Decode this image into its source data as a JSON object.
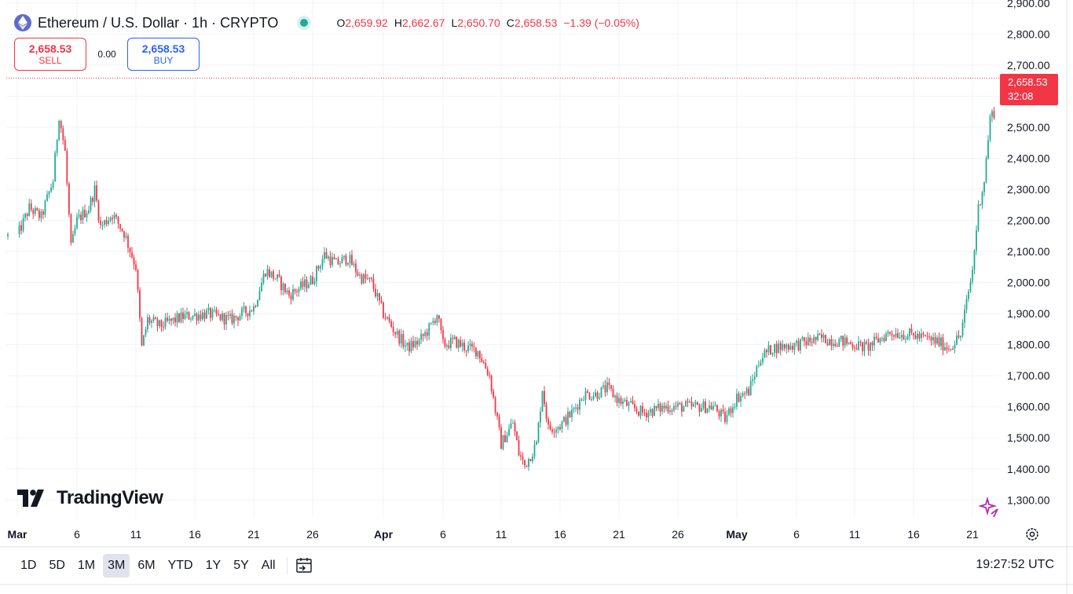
{
  "header": {
    "symbol_title": "Ethereum / U.S. Dollar · 1h · CRYPTO",
    "open_label": "O",
    "open_value": "2,659.92",
    "high_label": "H",
    "high_value": "2,662.67",
    "low_label": "L",
    "low_value": "2,650.70",
    "close_label": "C",
    "close_value": "2,658.53",
    "change": "−1.39 (−0.05%)",
    "icons": [
      "ethereum-logo-icon",
      "market-open-dot-icon"
    ]
  },
  "trade": {
    "sell_price": "2,658.53",
    "sell_label": "SELL",
    "spread": "0.00",
    "buy_price": "2,658.53",
    "buy_label": "BUY"
  },
  "price_tag": {
    "price": "2,658.53",
    "countdown": "32:08"
  },
  "brand": {
    "logo_text": "TradingView"
  },
  "toolbar": {
    "timeframes": [
      "1D",
      "5D",
      "1M",
      "3M",
      "6M",
      "YTD",
      "1Y",
      "5Y",
      "All"
    ],
    "active_timeframe": "3M",
    "clock": "19:27:52 UTC",
    "icons": [
      "date-range-icon",
      "settings-icon",
      "ai-sparkle-icon"
    ]
  },
  "colors": {
    "up": "#22ab94",
    "down": "#f23645",
    "accent": "#2962ff",
    "price_line": "#f23645"
  },
  "chart_data": {
    "type": "candlestick",
    "title": "Ethereum / U.S. Dollar · 1h · CRYPTO",
    "y_ticks": [
      "2,900.00",
      "2,800.00",
      "2,700.00",
      "2,600.00",
      "2,500.00",
      "2,400.00",
      "2,300.00",
      "2,200.00",
      "2,100.00",
      "2,000.00",
      "1,900.00",
      "1,800.00",
      "1,700.00",
      "1,600.00",
      "1,500.00",
      "1,400.00",
      "1,300.00"
    ],
    "ylim": [
      1240,
      2910
    ],
    "x_ticks": [
      "Mar",
      "6",
      "11",
      "16",
      "21",
      "26",
      "Apr",
      "6",
      "11",
      "16",
      "21",
      "26",
      "May",
      "6",
      "11",
      "16",
      "21"
    ],
    "xlim": [
      "2024-03-01",
      "2024-05-24"
    ],
    "last_price": 2658.53,
    "price_path": [
      [
        "2024-03-01",
        2150
      ],
      [
        "2024-03-02",
        2240
      ],
      [
        "2024-03-03",
        2210
      ],
      [
        "2024-03-04",
        2330
      ],
      [
        "2024-03-04T12",
        2540
      ],
      [
        "2024-03-05",
        2420
      ],
      [
        "2024-03-05T12",
        2110
      ],
      [
        "2024-03-06",
        2200
      ],
      [
        "2024-03-07",
        2240
      ],
      [
        "2024-03-07T12",
        2300
      ],
      [
        "2024-03-08",
        2180
      ],
      [
        "2024-03-09",
        2220
      ],
      [
        "2024-03-10",
        2160
      ],
      [
        "2024-03-11",
        2050
      ],
      [
        "2024-03-11T12",
        1790
      ],
      [
        "2024-03-12",
        1880
      ],
      [
        "2024-03-13",
        1860
      ],
      [
        "2024-03-15",
        1890
      ],
      [
        "2024-03-17",
        1900
      ],
      [
        "2024-03-19",
        1880
      ],
      [
        "2024-03-21",
        1920
      ],
      [
        "2024-03-22",
        2040
      ],
      [
        "2024-03-23",
        2010
      ],
      [
        "2024-03-24",
        1960
      ],
      [
        "2024-03-26",
        2010
      ],
      [
        "2024-03-27",
        2090
      ],
      [
        "2024-03-28",
        2060
      ],
      [
        "2024-03-29",
        2080
      ],
      [
        "2024-03-30",
        2020
      ],
      [
        "2024-03-31",
        2000
      ],
      [
        "2024-04-01",
        1900
      ],
      [
        "2024-04-02",
        1840
      ],
      [
        "2024-04-03",
        1790
      ],
      [
        "2024-04-04",
        1810
      ],
      [
        "2024-04-05",
        1860
      ],
      [
        "2024-04-05T12",
        1900
      ],
      [
        "2024-04-06",
        1800
      ],
      [
        "2024-04-07",
        1810
      ],
      [
        "2024-04-08",
        1790
      ],
      [
        "2024-04-09",
        1780
      ],
      [
        "2024-04-10",
        1700
      ],
      [
        "2024-04-11",
        1480
      ],
      [
        "2024-04-12",
        1550
      ],
      [
        "2024-04-12T12",
        1450
      ],
      [
        "2024-04-13",
        1410
      ],
      [
        "2024-04-14",
        1480
      ],
      [
        "2024-04-14T12",
        1660
      ],
      [
        "2024-04-15",
        1530
      ],
      [
        "2024-04-16",
        1540
      ],
      [
        "2024-04-17",
        1580
      ],
      [
        "2024-04-18",
        1640
      ],
      [
        "2024-04-19",
        1640
      ],
      [
        "2024-04-20",
        1660
      ],
      [
        "2024-04-21",
        1620
      ],
      [
        "2024-04-23",
        1580
      ],
      [
        "2024-04-25",
        1600
      ],
      [
        "2024-04-27",
        1600
      ],
      [
        "2024-04-29",
        1600
      ],
      [
        "2024-04-30",
        1560
      ],
      [
        "2024-05-01",
        1630
      ],
      [
        "2024-05-02",
        1650
      ],
      [
        "2024-05-03",
        1760
      ],
      [
        "2024-05-04",
        1790
      ],
      [
        "2024-05-06",
        1800
      ],
      [
        "2024-05-08",
        1820
      ],
      [
        "2024-05-10",
        1810
      ],
      [
        "2024-05-12",
        1790
      ],
      [
        "2024-05-14",
        1840
      ],
      [
        "2024-05-16",
        1830
      ],
      [
        "2024-05-18",
        1810
      ],
      [
        "2024-05-19",
        1790
      ],
      [
        "2024-05-20",
        1830
      ],
      [
        "2024-05-21",
        2040
      ],
      [
        "2024-05-21T12",
        2240
      ],
      [
        "2024-05-22",
        2330
      ],
      [
        "2024-05-22T12",
        2530
      ],
      [
        "2024-05-23",
        2560
      ],
      [
        "2024-05-23T06",
        2470
      ],
      [
        "2024-05-23T12",
        2660
      ],
      [
        "2024-05-23T18",
        2730
      ],
      [
        "2024-05-24",
        2600
      ]
    ]
  }
}
